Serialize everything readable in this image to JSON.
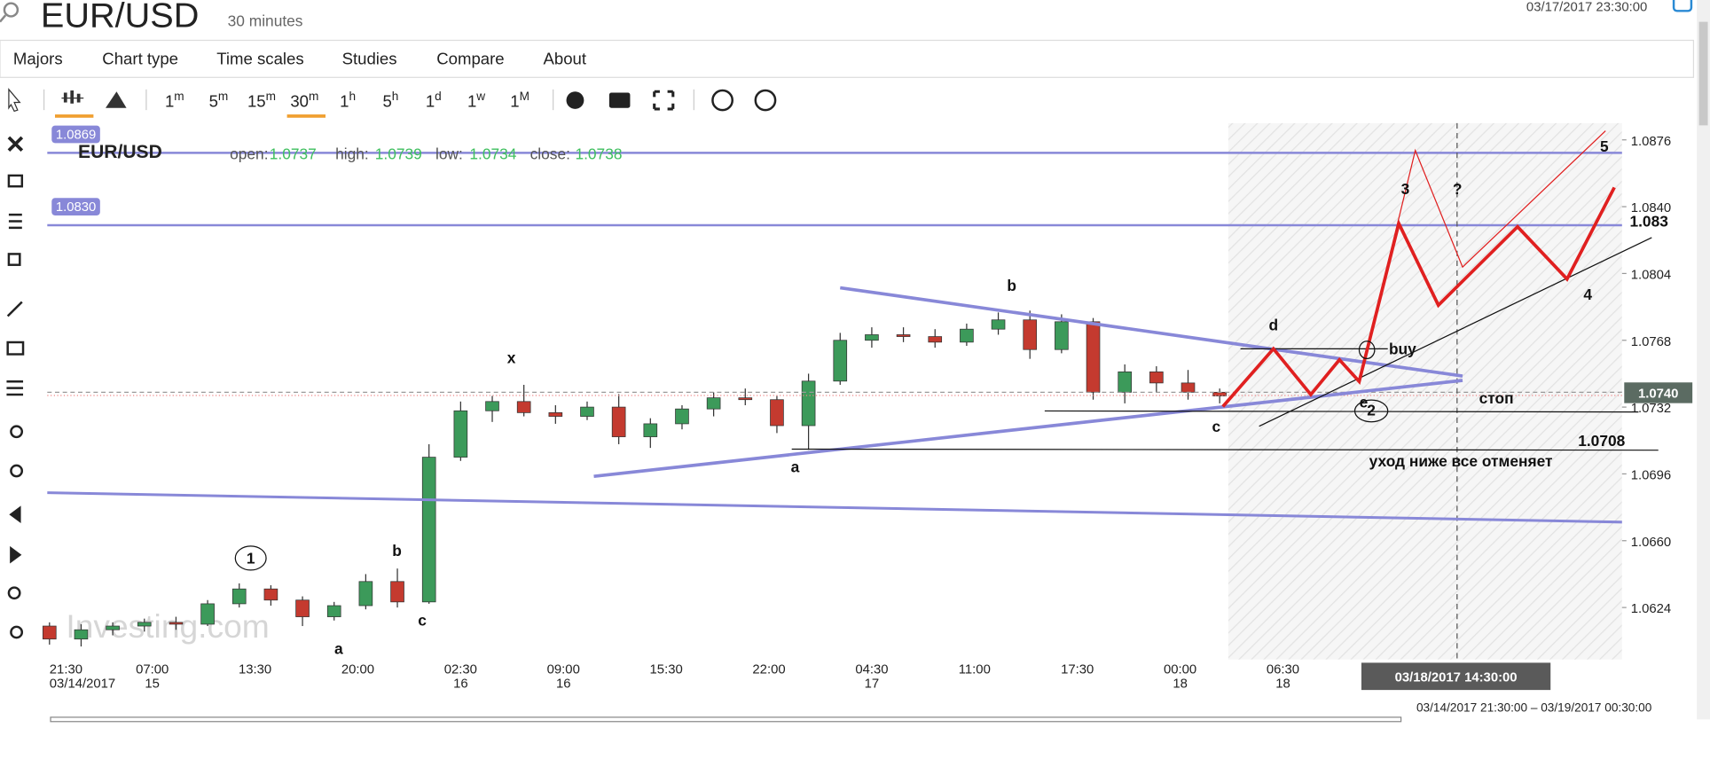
{
  "header": {
    "symbol": "EUR/USD",
    "interval": "30 minutes",
    "datetime": "03/17/2017 23:30:00"
  },
  "menu": [
    "Majors",
    "Chart type",
    "Time scales",
    "Studies",
    "Compare",
    "About"
  ],
  "timeframes": [
    {
      "n": "1",
      "u": "m"
    },
    {
      "n": "5",
      "u": "m"
    },
    {
      "n": "15",
      "u": "m"
    },
    {
      "n": "30",
      "u": "m"
    },
    {
      "n": "1",
      "u": "h"
    },
    {
      "n": "5",
      "u": "h"
    },
    {
      "n": "1",
      "u": "d"
    },
    {
      "n": "1",
      "u": "w"
    },
    {
      "n": "1",
      "u": "M"
    }
  ],
  "chart_data": {
    "type": "candlestick",
    "title": "EUR/USD",
    "ohlc_labels": [
      "open:",
      "high:",
      "low:",
      "close:"
    ],
    "ohlc_values": [
      1.0737,
      1.0739,
      1.0734,
      1.0738
    ],
    "open": [
      1.0614,
      1.0607,
      1.0612,
      1.0614,
      1.0616,
      1.0615,
      1.0626,
      1.0634,
      1.0628,
      1.0619,
      1.0625,
      1.0638,
      1.0627,
      1.0705,
      1.073,
      1.0735,
      1.0729,
      1.0727,
      1.0732,
      1.0716,
      1.0723,
      1.0731,
      1.0737,
      1.0736,
      1.0722,
      1.0746,
      1.0768,
      1.0771,
      1.077,
      1.0767,
      1.0774,
      1.0779,
      1.0763,
      1.0778,
      1.074,
      1.0751,
      1.0745,
      1.074
    ],
    "high": [
      1.0616,
      1.0615,
      1.0616,
      1.0618,
      1.0619,
      1.0628,
      1.0637,
      1.0636,
      1.063,
      1.0627,
      1.0642,
      1.0645,
      1.0712,
      1.0735,
      1.0738,
      1.0744,
      1.0733,
      1.0735,
      1.0739,
      1.0726,
      1.0733,
      1.074,
      1.0742,
      1.0738,
      1.075,
      1.0772,
      1.0775,
      1.0775,
      1.0774,
      1.0777,
      1.0783,
      1.0784,
      1.0782,
      1.078,
      1.0755,
      1.0754,
      1.0752,
      1.0742
    ],
    "low": [
      1.0604,
      1.0603,
      1.0609,
      1.0611,
      1.0612,
      1.0614,
      1.0624,
      1.0625,
      1.0614,
      1.0617,
      1.0623,
      1.0624,
      1.0626,
      1.0703,
      1.0724,
      1.0727,
      1.0723,
      1.0725,
      1.0712,
      1.071,
      1.072,
      1.0727,
      1.0733,
      1.0718,
      1.0709,
      1.0744,
      1.0764,
      1.0767,
      1.0764,
      1.0765,
      1.0771,
      1.0758,
      1.0761,
      1.0736,
      1.0734,
      1.074,
      1.0736,
      1.0734
    ],
    "close": [
      1.0607,
      1.0612,
      1.0614,
      1.0616,
      1.0615,
      1.0626,
      1.0634,
      1.0628,
      1.0619,
      1.0625,
      1.0638,
      1.0627,
      1.0705,
      1.073,
      1.0735,
      1.0729,
      1.0727,
      1.0732,
      1.0716,
      1.0723,
      1.0731,
      1.0737,
      1.0736,
      1.0722,
      1.0746,
      1.0768,
      1.0771,
      1.077,
      1.0767,
      1.0774,
      1.0779,
      1.0763,
      1.0778,
      1.074,
      1.0751,
      1.0745,
      1.074,
      1.0738
    ],
    "up_color": "#3c9a5a",
    "down_color": "#c43a2f",
    "ylim": [
      1.0596,
      1.0885
    ],
    "yticks": [
      1.0876,
      {
        "value": 1.084,
        "label": "1.0840"
      },
      1.0804,
      1.0768,
      1.0732,
      1.0696,
      {
        "value": 1.066,
        "label": "1.0660"
      },
      1.0624
    ],
    "xticks": [
      {
        "time": "21:30",
        "date": "03/14/2017"
      },
      {
        "time": "07:00",
        "date": "15"
      },
      {
        "time": "13:30"
      },
      {
        "time": "20:00"
      },
      {
        "time": "02:30",
        "date": "16"
      },
      {
        "time": "09:00",
        "date": "16"
      },
      {
        "time": "15:30"
      },
      {
        "time": "22:00"
      },
      {
        "time": "04:30",
        "date": "17"
      },
      {
        "time": "11:00"
      },
      {
        "time": "17:30"
      },
      {
        "time": "00:00",
        "date": "18"
      },
      {
        "time": "06:30",
        "date": "18"
      }
    ],
    "price_lines": [
      1.0869,
      {
        "value": 1.083,
        "label": "1.0830"
      }
    ],
    "price_line_color": "#8888d8",
    "last_price": {
      "value": 1.074,
      "label": "1.0740"
    },
    "crosshair": "03/18/2017 14:30:00",
    "range": "03/14/2017 21:30:00 – 03/19/2017 00:30:00",
    "watermark": "Investing.com",
    "annotations": [
      "1",
      "a",
      "b",
      "c",
      "x",
      "a",
      "b",
      "c",
      "d",
      "e",
      "2",
      "buy",
      "стоп",
      "3",
      "?",
      "4",
      "5",
      "1.083",
      "1.0708",
      "уход ниже все отменяет"
    ]
  }
}
